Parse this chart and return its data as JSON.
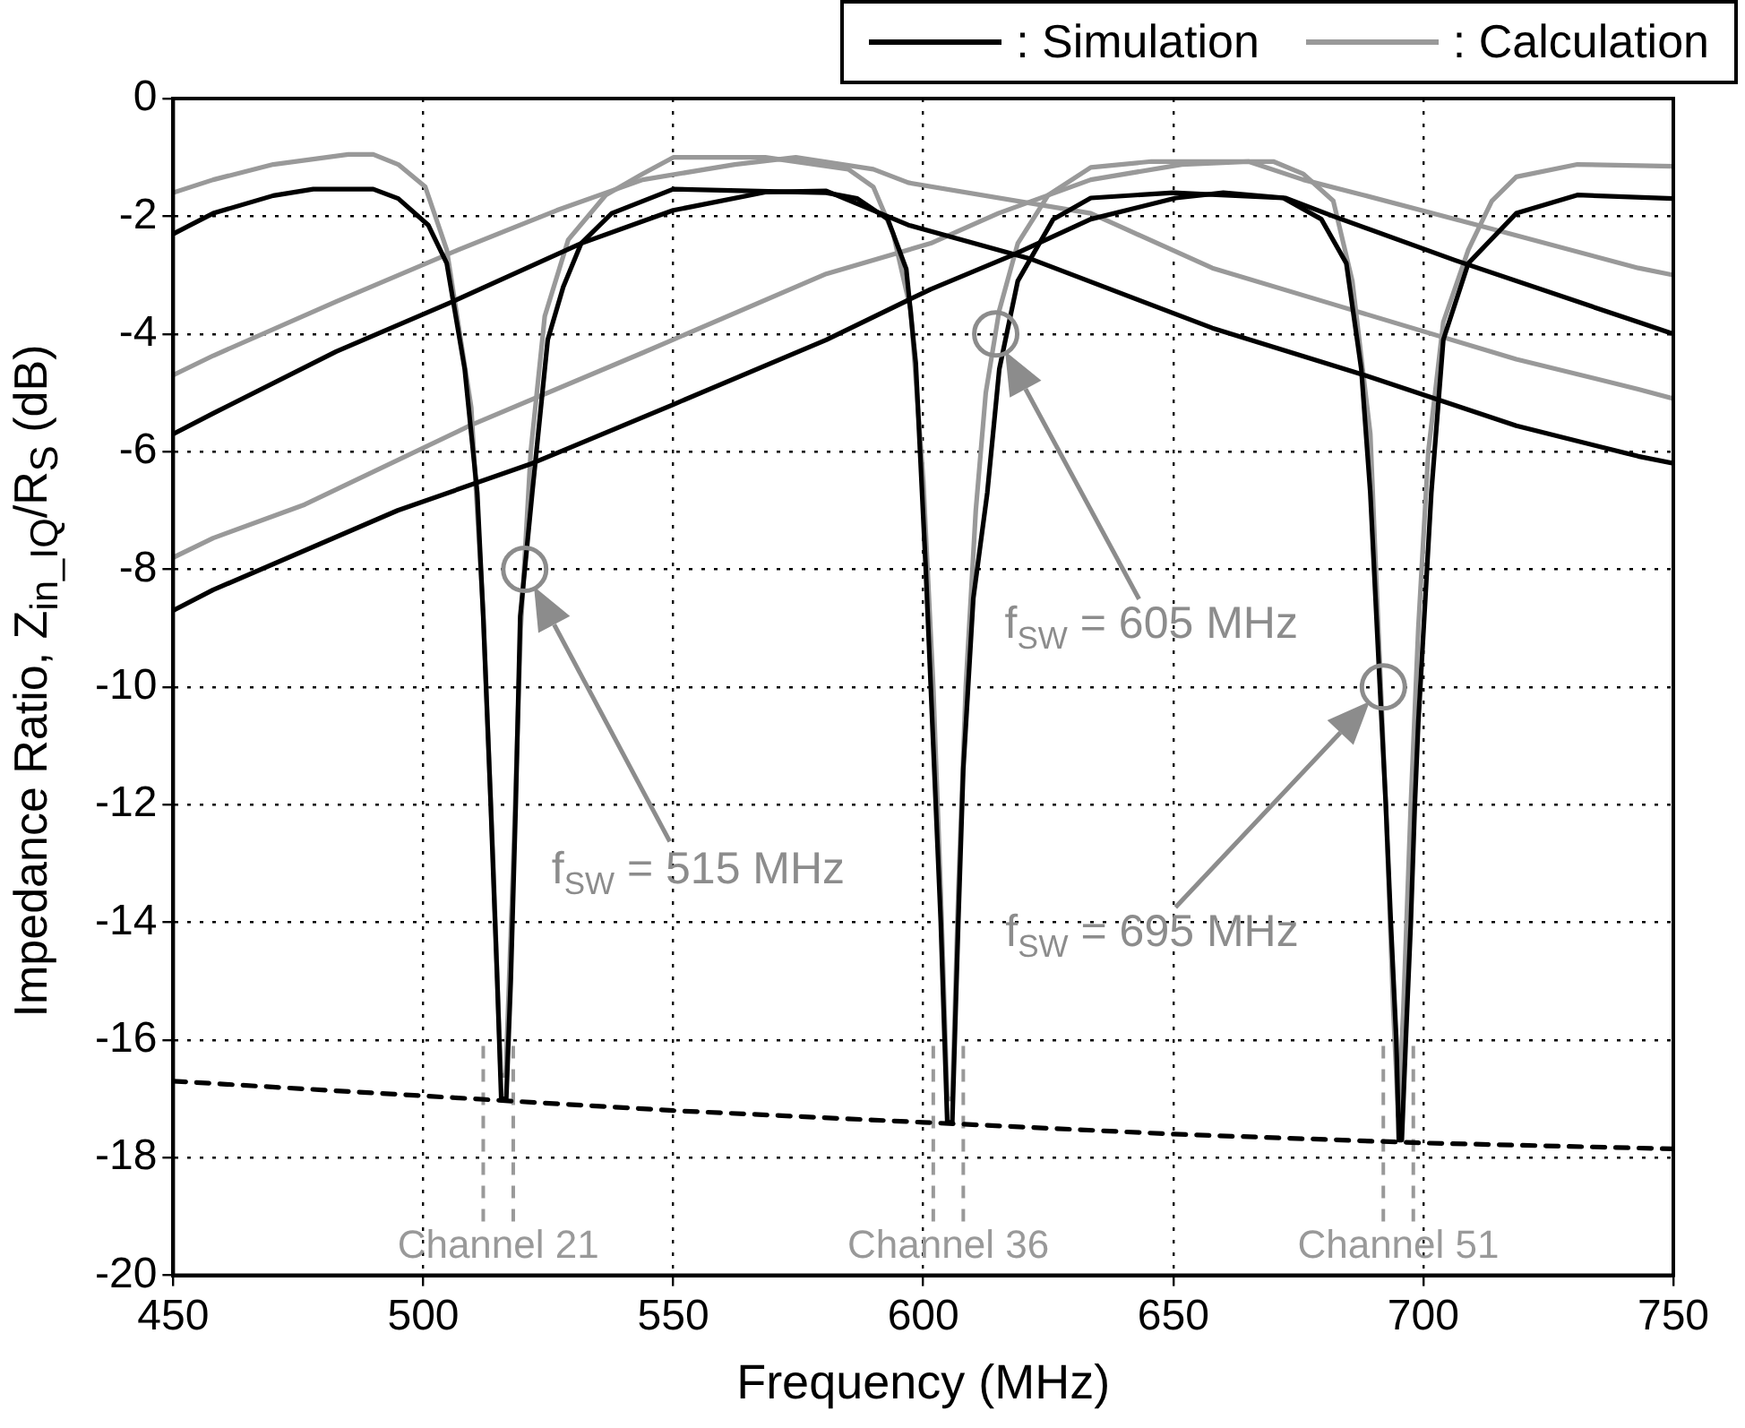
{
  "chart_data": {
    "type": "line",
    "xlabel": "Frequency (MHz)",
    "ylabel": "Impedance Ratio, Z$_{in_IQ}$/R$_{S}$ (dB)",
    "xlim": [
      450,
      750
    ],
    "xticks": [
      450,
      500,
      550,
      600,
      650,
      700,
      750
    ],
    "ylim": [
      -20,
      0
    ],
    "yticks": [
      0,
      -2,
      -4,
      -6,
      -8,
      -10,
      -12,
      -14,
      -16,
      -18,
      -20
    ],
    "grid": true,
    "legend": "top right",
    "series": [
      {
        "name": ": Simulation",
        "color": "#000000",
        "x": [
          450,
          458,
          470,
          478,
          490,
          495,
          501,
          504.7,
          508.3,
          510.8,
          512,
          513.5,
          514.8,
          515.6,
          516.6,
          517.5,
          518.5,
          519.4,
          521.8,
          524.9,
          528,
          531.6,
          537.7,
          550,
          580.6,
          586.8,
          592.9,
          596.6,
          598.5,
          600.5,
          602,
          603.5,
          604.8,
          605.8,
          607,
          608,
          610,
          612.8,
          615.2,
          618.9,
          626,
          633.5,
          650,
          672,
          679.6,
          684.6,
          687.6,
          689.4,
          691.2,
          692.5,
          693.5,
          694.6,
          695.1,
          695.7,
          696.5,
          697.5,
          698.3,
          699,
          701.6,
          704,
          709,
          718.6,
          730.8,
          750
        ],
        "values": [
          -2.3,
          -1.95,
          -1.65,
          -1.54,
          -1.54,
          -1.7,
          -2.15,
          -2.8,
          -4.6,
          -6.7,
          -8.8,
          -12,
          -15,
          -17,
          -17,
          -15,
          -12,
          -8.8,
          -6.7,
          -4.1,
          -3.2,
          -2.46,
          -1.95,
          -1.54,
          -1.6,
          -1.7,
          -2.05,
          -2.9,
          -4.5,
          -8,
          -11,
          -14,
          -17.4,
          -17.4,
          -14,
          -11.4,
          -8.5,
          -6.7,
          -4.6,
          -3.1,
          -2.05,
          -1.69,
          -1.6,
          -1.69,
          -2.05,
          -2.8,
          -4.6,
          -6.7,
          -9.8,
          -12,
          -14,
          -16,
          -17.7,
          -17.7,
          -16,
          -14,
          -12,
          -10.6,
          -6.7,
          -4.1,
          -2.8,
          -1.95,
          -1.64,
          -1.7
        ]
      },
      {
        "color": "#000000",
        "x": [
          450,
          458,
          482.6,
          505.9,
          531.6,
          550,
          568.4,
          580.6,
          597,
          621.3,
          657.8,
          688.2,
          718.6,
          743,
          750
        ],
        "values": [
          -5.7,
          -5.35,
          -4.3,
          -3.45,
          -2.46,
          -1.9,
          -1.59,
          -1.57,
          -2.15,
          -2.72,
          -3.9,
          -4.7,
          -5.56,
          -6.08,
          -6.2
        ]
      },
      {
        "color": "#000000",
        "x": [
          450,
          458,
          494.9,
          521.8,
          550,
          580.6,
          601.5,
          617.6,
          633.5,
          650.5,
          660,
          672.4,
          682,
          706.4,
          743,
          750
        ],
        "values": [
          -8.7,
          -8.35,
          -7,
          -6.2,
          -5.2,
          -4.1,
          -3.24,
          -2.67,
          -2.05,
          -1.69,
          -1.6,
          -1.69,
          -2,
          -2.75,
          -3.8,
          -4
        ]
      },
      {
        "color": "#000000",
        "line_style": "dashed",
        "x": [
          450,
          500,
          550,
          600,
          650,
          700,
          750
        ],
        "values": [
          -16.7,
          -16.95,
          -17.2,
          -17.4,
          -17.6,
          -17.75,
          -17.85
        ]
      },
      {
        "name": ": Calculation",
        "color": "#999999",
        "x": [
          450,
          458,
          470,
          485,
          490,
          495,
          500.4,
          504.7,
          509.6,
          512,
          514,
          515.5,
          516.5,
          518,
          519.5,
          521.5,
          524.3,
          529,
          536.5,
          543.9,
          550,
          568.4,
          585,
          590,
          594,
          597.5,
          600,
          602,
          603.5,
          604.8,
          605.8,
          607,
          608.5,
          610.5,
          612.5,
          615.2,
          618.9,
          625,
          633.5,
          645.6,
          670,
          676,
          682,
          685.8,
          689.4,
          691,
          692.5,
          694,
          695,
          696,
          697.5,
          699,
          701,
          704,
          709,
          713.7,
          718.6,
          730.8,
          750
        ],
        "values": [
          -1.6,
          -1.38,
          -1.12,
          -0.95,
          -0.95,
          -1.12,
          -1.5,
          -2.57,
          -5.25,
          -8.76,
          -13,
          -16.6,
          -16.6,
          -13,
          -9,
          -6,
          -3.7,
          -2.4,
          -1.64,
          -1.28,
          -1,
          -1,
          -1.2,
          -1.5,
          -2.3,
          -3.6,
          -6.5,
          -10,
          -13.5,
          -17,
          -17,
          -13.5,
          -10,
          -7,
          -5,
          -3.6,
          -2.46,
          -1.64,
          -1.17,
          -1.07,
          -1.07,
          -1.28,
          -1.74,
          -3.1,
          -5.7,
          -9,
          -12,
          -15.5,
          -17.3,
          -15.5,
          -12,
          -9,
          -6,
          -3.8,
          -2.57,
          -1.74,
          -1.33,
          -1.12,
          -1.15
        ]
      },
      {
        "color": "#999999",
        "x": [
          450,
          458,
          482.6,
          507,
          526.7,
          543.9,
          562.3,
          574.5,
          590,
          597,
          633.5,
          657.8,
          682.1,
          718.6,
          743,
          750
        ],
        "values": [
          -4.7,
          -4.37,
          -3.45,
          -2.57,
          -1.9,
          -1.38,
          -1.12,
          -1,
          -1.2,
          -1.43,
          -1.95,
          -2.88,
          -3.5,
          -4.43,
          -4.94,
          -5.1
        ]
      },
      {
        "color": "#999999",
        "x": [
          450,
          458,
          476.3,
          509.3,
          543.9,
          580.6,
          601.5,
          615,
          633.5,
          651.7,
          665,
          676,
          688,
          706.4,
          743,
          750
        ],
        "values": [
          -7.8,
          -7.47,
          -6.9,
          -5.56,
          -4.32,
          -2.98,
          -2.46,
          -1.95,
          -1.38,
          -1.12,
          -1.07,
          -1.38,
          -1.64,
          -2.05,
          -2.88,
          -3
        ]
      }
    ],
    "ref_lines": [
      {
        "axis": "x",
        "value": 512,
        "label": "Channel 21",
        "color": "#999999",
        "line_style": "dashed"
      },
      {
        "axis": "x",
        "value": 518,
        "color": "#999999",
        "line_style": "dashed"
      },
      {
        "axis": "x",
        "value": 602,
        "label": "Channel 36",
        "color": "#999999",
        "line_style": "dashed"
      },
      {
        "axis": "x",
        "value": 608,
        "color": "#999999",
        "line_style": "dashed"
      },
      {
        "axis": "x",
        "value": 692,
        "label": "Channel 51",
        "color": "#999999",
        "line_style": "dashed"
      },
      {
        "axis": "x",
        "value": 698,
        "color": "#999999",
        "line_style": "dashed"
      }
    ],
    "annotations": [
      "f$_{SW}$ = 515 MHz",
      "f$_{SW}$ = 605 MHz",
      "f$_{SW}$ = 695 MHz"
    ]
  }
}
